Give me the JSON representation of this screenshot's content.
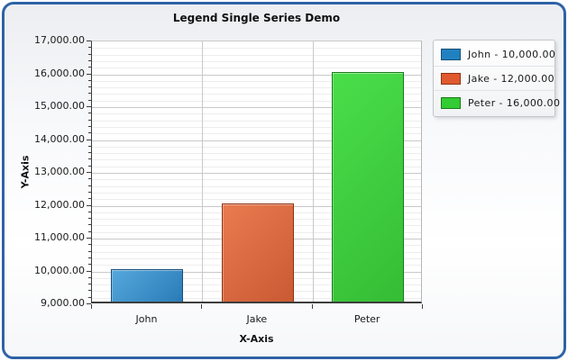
{
  "chart_data": {
    "type": "bar",
    "title": "Legend Single Series Demo",
    "xlabel": "X-Axis",
    "ylabel": "Y-Axis",
    "categories": [
      "John",
      "Jake",
      "Peter"
    ],
    "values": [
      10000,
      12000,
      16000
    ],
    "ylim": [
      9000,
      17000
    ],
    "y_major_step": 1000,
    "y_minor_step": 200,
    "y_tick_labels": [
      "17,000.00",
      "16,000.00",
      "15,000.00",
      "14,000.00",
      "13,000.00",
      "12,000.00",
      "11,000.00",
      "10,000.00",
      "9,000.00"
    ],
    "grid": true,
    "legend_position": "top-right",
    "frame_border_color": "#2e63a6",
    "series_styles": [
      {
        "fill_light": "#55a7dc",
        "fill_dark": "#2a7cb8",
        "border": "#174f79"
      },
      {
        "fill_light": "#ea7a50",
        "fill_dark": "#ca5a33",
        "border": "#8c3312"
      },
      {
        "fill_light": "#4ade4a",
        "fill_dark": "#35bd35",
        "border": "#1a7a1a"
      }
    ],
    "legend_entries": [
      {
        "label": "John - 10,000.00",
        "color": "#2181c0",
        "border": "#174f79"
      },
      {
        "label": "Jake - 12,000.00",
        "color": "#e0592e",
        "border": "#8c3312"
      },
      {
        "label": "Peter - 16,000.00",
        "color": "#33cc33",
        "border": "#1a7a1a"
      }
    ]
  }
}
